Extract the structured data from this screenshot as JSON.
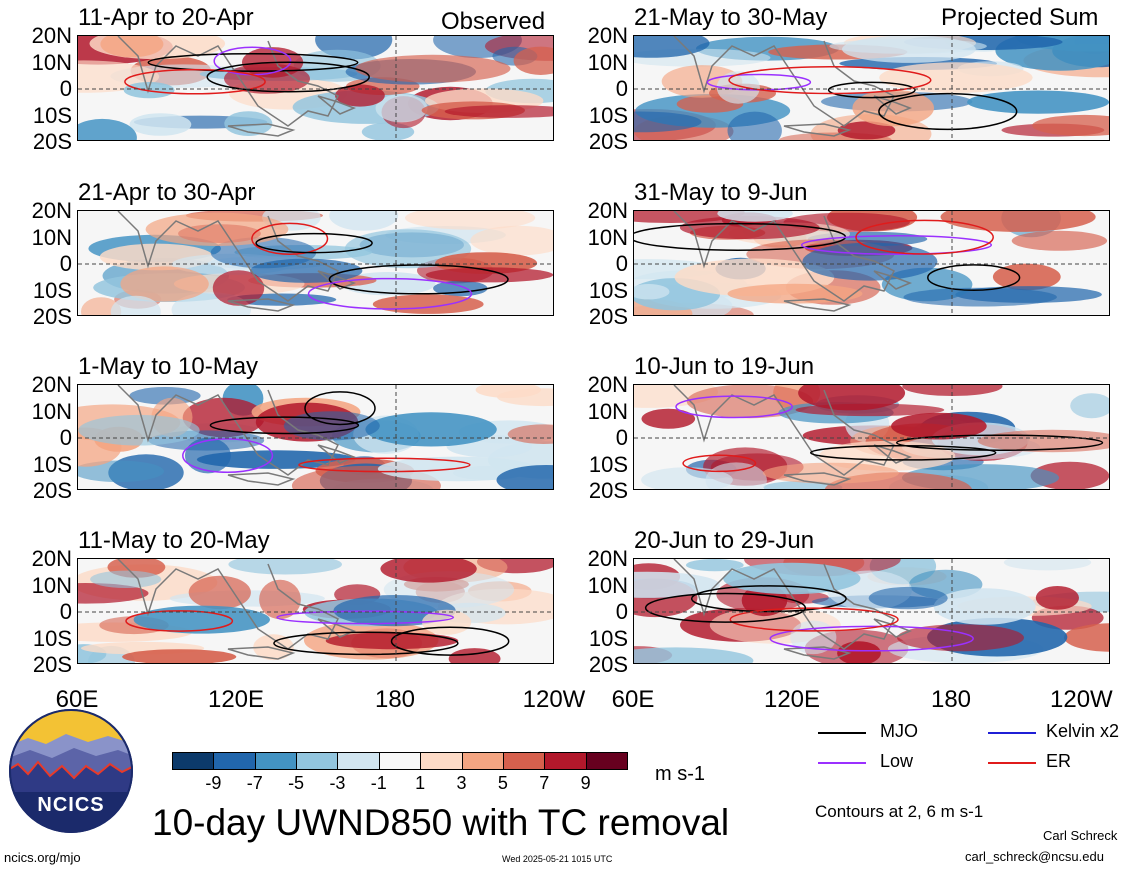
{
  "chart_data": {
    "type": "heatmap",
    "title": "10-day UWND850 with TC removal",
    "variable": "850 hPa zonal wind anomaly",
    "units": "m s-1",
    "lat_ticks": [
      "20N",
      "10N",
      "0",
      "10S",
      "20S"
    ],
    "lon_ticks": [
      "60E",
      "120E",
      "180",
      "120W"
    ],
    "lon_ticks_right": [
      "60E",
      "120E",
      "180",
      "120W"
    ],
    "colorbar_levels": [
      "-9",
      "-7",
      "-5",
      "-3",
      "-1",
      "1",
      "3",
      "5",
      "7",
      "9"
    ],
    "colorbar_colors": [
      "#0c3a6b",
      "#2166ac",
      "#4393c3",
      "#92c5de",
      "#d1e5f0",
      "#f7f7f7",
      "#fddbc7",
      "#f4a582",
      "#d6604d",
      "#b2182b",
      "#67001f"
    ],
    "columns": [
      {
        "header": "Observed",
        "panels": [
          {
            "period": "11-Apr to 20-Apr"
          },
          {
            "period": "21-Apr to 30-Apr"
          },
          {
            "period": "1-May to 10-May"
          },
          {
            "period": "11-May to 20-May"
          }
        ]
      },
      {
        "header": "Projected Sum",
        "panels": [
          {
            "period": "21-May to 30-May"
          },
          {
            "period": "31-May to 9-Jun"
          },
          {
            "period": "10-Jun to 19-Jun"
          },
          {
            "period": "20-Jun to 29-Jun"
          }
        ]
      }
    ],
    "legend": [
      {
        "label": "MJO",
        "color": "#000000"
      },
      {
        "label": "Kelvin x2",
        "color": "#1f1fd6"
      },
      {
        "label": "Low",
        "color": "#9b30ff"
      },
      {
        "label": "ER",
        "color": "#e01b1b"
      }
    ],
    "contour_note": "Contours at 2, 6 m s-1"
  },
  "footer": {
    "logo_text": "NCICS",
    "url": "ncics.org/mjo",
    "timestamp": "Wed 2025-05-21 1015 UTC",
    "author": "Carl Schreck",
    "email": "carl_schreck@ncsu.edu"
  }
}
